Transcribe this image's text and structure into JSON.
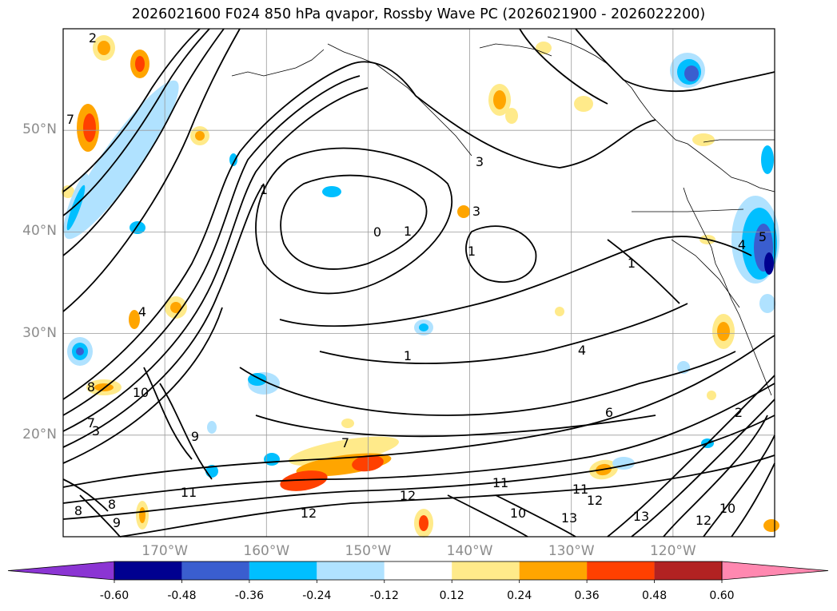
{
  "title": "2026021600 F024 850 hPa qvapor, Rossby Wave PC (2026021900 - 2026022200)",
  "map": {
    "lon_range": [
      -180,
      -110
    ],
    "lat_range": [
      10,
      60
    ],
    "lat_labels": [
      "50°N",
      "40°N",
      "30°N",
      "20°N"
    ],
    "lon_labels": [
      "170°W",
      "160°W",
      "150°W",
      "140°W",
      "130°W",
      "120°W"
    ],
    "gridlines": true,
    "contour_labels": [
      "2",
      "7",
      "1",
      "0",
      "1",
      "1",
      "3",
      "1",
      "4",
      "3",
      "3",
      "10",
      "8",
      "7",
      "9",
      "4",
      "5",
      "4",
      "1",
      "11",
      "12",
      "12",
      "10",
      "11",
      "12",
      "13",
      "13",
      "12",
      "10",
      "8",
      "9",
      "6",
      "2",
      "7",
      "11",
      "8"
    ]
  },
  "colorbar": {
    "ticks": [
      "-0.60",
      "-0.48",
      "-0.36",
      "-0.24",
      "-0.12",
      "0.12",
      "0.24",
      "0.36",
      "0.48",
      "0.60"
    ],
    "colors": [
      "#8b35d3",
      "#000090",
      "#3a5ecf",
      "#00bfff",
      "#b0e2ff",
      "#ffffff",
      "#ffea8a",
      "#ffa500",
      "#ff4000",
      "#b22222",
      "#ff88b0"
    ],
    "extend": "both"
  }
}
